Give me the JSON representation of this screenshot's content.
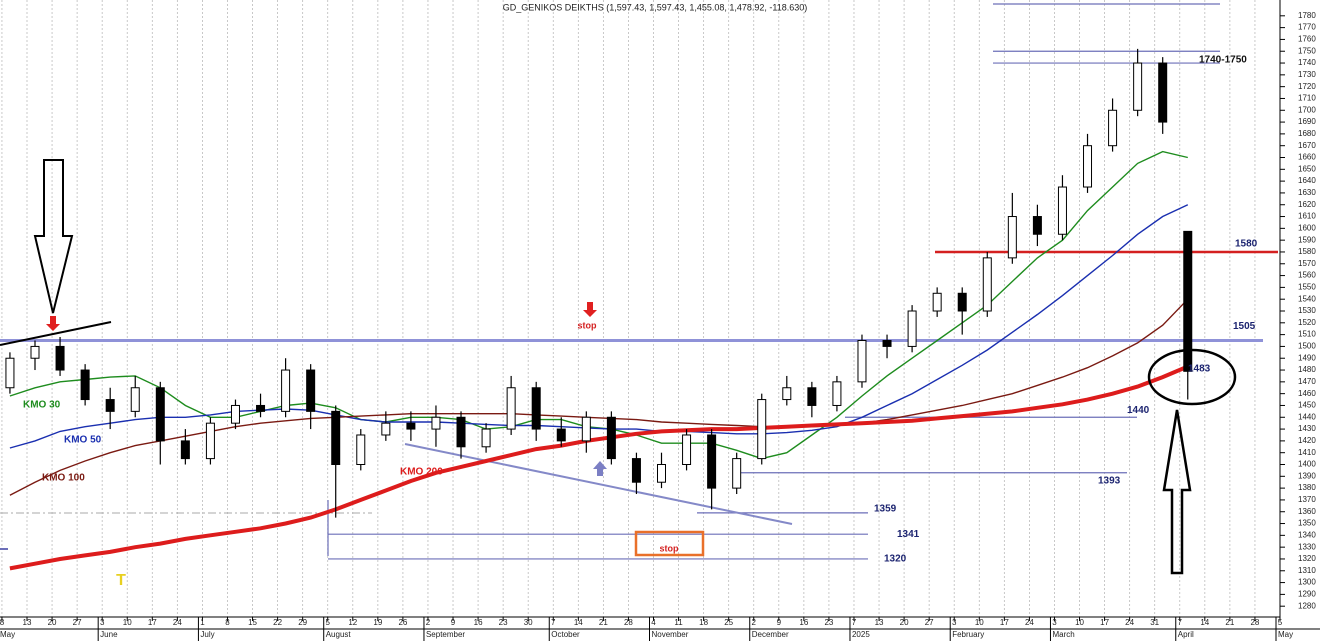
{
  "chart_data": {
    "type": "candlestick",
    "title": "GD_GENIKOS DEIKTHS (1,597.43, 1,597.43, 1,455.08, 1,478.92, -118.630)",
    "categories": [
      "8",
      "13",
      "20",
      "27",
      "3",
      "10",
      "17",
      "24",
      "1",
      "8",
      "15",
      "22",
      "29",
      "5",
      "12",
      "19",
      "26",
      "2",
      "9",
      "16",
      "23",
      "30",
      "7",
      "14",
      "21",
      "28",
      "4",
      "11",
      "18",
      "25",
      "2",
      "9",
      "16",
      "23",
      "7",
      "13",
      "20",
      "27",
      "3",
      "10",
      "17",
      "24",
      "3",
      "10",
      "17",
      "24",
      "31",
      "7",
      "14",
      "21",
      "28",
      "5"
    ],
    "months": [
      "May",
      null,
      null,
      null,
      "June",
      null,
      null,
      null,
      "July",
      null,
      null,
      null,
      null,
      "August",
      null,
      null,
      null,
      "September",
      null,
      null,
      null,
      null,
      "October",
      null,
      null,
      null,
      "November",
      null,
      null,
      null,
      "December",
      null,
      null,
      null,
      "2025",
      null,
      null,
      null,
      "February",
      null,
      null,
      null,
      "March",
      null,
      null,
      null,
      null,
      "April",
      null,
      null,
      null,
      "May"
    ],
    "open": [
      1465,
      1490,
      1500,
      1480,
      1455,
      1445,
      1465,
      1420,
      1405,
      1435,
      1450,
      1445,
      1480,
      1445,
      1400,
      1425,
      1435,
      1430,
      1440,
      1415,
      1430,
      1465,
      1430,
      1420,
      1440,
      1405,
      1385,
      1400,
      1425,
      1380,
      1405,
      1455,
      1465,
      1450,
      1470,
      1505,
      1500,
      1530,
      1545,
      1530,
      1575,
      1610,
      1595,
      1635,
      1670,
      1700,
      1740,
      1597.43,
      null,
      null,
      null,
      null
    ],
    "high": [
      1495,
      1505,
      1508,
      1485,
      1465,
      1475,
      1470,
      1430,
      1440,
      1455,
      1460,
      1490,
      1485,
      1450,
      1430,
      1445,
      1445,
      1450,
      1445,
      1435,
      1475,
      1470,
      1440,
      1445,
      1445,
      1410,
      1410,
      1430,
      1430,
      1410,
      1460,
      1475,
      1470,
      1475,
      1510,
      1510,
      1535,
      1550,
      1550,
      1580,
      1630,
      1620,
      1645,
      1680,
      1710,
      1752,
      1745,
      1597.43,
      null,
      null,
      null,
      null
    ],
    "low": [
      1460,
      1480,
      1475,
      1450,
      1430,
      1440,
      1400,
      1400,
      1400,
      1430,
      1440,
      1440,
      1430,
      1355,
      1395,
      1420,
      1420,
      1415,
      1405,
      1410,
      1425,
      1420,
      1415,
      1410,
      1400,
      1375,
      1380,
      1395,
      1362,
      1375,
      1400,
      1450,
      1440,
      1445,
      1465,
      1490,
      1495,
      1525,
      1510,
      1525,
      1570,
      1585,
      1590,
      1630,
      1665,
      1695,
      1680,
      1455.08,
      null,
      null,
      null,
      null
    ],
    "close": [
      1490,
      1500,
      1480,
      1455,
      1445,
      1465,
      1420,
      1405,
      1435,
      1450,
      1445,
      1480,
      1445,
      1400,
      1425,
      1435,
      1430,
      1440,
      1415,
      1430,
      1465,
      1430,
      1420,
      1440,
      1405,
      1385,
      1400,
      1425,
      1380,
      1405,
      1455,
      1465,
      1450,
      1470,
      1505,
      1500,
      1530,
      1545,
      1530,
      1575,
      1610,
      1595,
      1635,
      1670,
      1700,
      1740,
      1690,
      1478.92,
      null,
      null,
      null,
      null
    ],
    "series": [
      {
        "name": "KMO 30",
        "color": "#1e8c1e",
        "values": [
          1458,
          1465,
          1470,
          1472,
          1474,
          1475,
          1465,
          1450,
          1440,
          1440,
          1445,
          1450,
          1452,
          1448,
          1438,
          1436,
          1440,
          1440,
          1438,
          1430,
          1432,
          1438,
          1438,
          1432,
          1430,
          1425,
          1418,
          1418,
          1418,
          1412,
          1405,
          1410,
          1425,
          1440,
          1458,
          1475,
          1490,
          1505,
          1520,
          1535,
          1555,
          1575,
          1590,
          1615,
          1635,
          1655,
          1665,
          1660,
          null,
          null,
          null,
          null
        ]
      },
      {
        "name": "KMO 50",
        "color": "#1a2fb0",
        "values": [
          1414,
          1420,
          1428,
          1432,
          1435,
          1438,
          1440,
          1440,
          1442,
          1445,
          1446,
          1447,
          1446,
          1442,
          1438,
          1436,
          1436,
          1436,
          1435,
          1434,
          1433,
          1433,
          1432,
          1431,
          1430,
          1430,
          1428,
          1428,
          1427,
          1426,
          1426,
          1427,
          1429,
          1432,
          1440,
          1450,
          1460,
          1472,
          1484,
          1497,
          1512,
          1527,
          1543,
          1560,
          1577,
          1595,
          1610,
          1620,
          null,
          null,
          null,
          null
        ]
      },
      {
        "name": "KMO 100",
        "color": "#7a1a12",
        "values": [
          1374,
          1385,
          1395,
          1403,
          1410,
          1416,
          1420,
          1424,
          1428,
          1432,
          1435,
          1437,
          1439,
          1440,
          1441,
          1442,
          1443,
          1443,
          1443,
          1443,
          1443,
          1442,
          1441,
          1440,
          1439,
          1438,
          1436,
          1435,
          1434,
          1433,
          1432,
          1432,
          1432,
          1433,
          1435,
          1438,
          1442,
          1446,
          1450,
          1455,
          1460,
          1467,
          1474,
          1482,
          1492,
          1503,
          1518,
          1540,
          null,
          null,
          null,
          null
        ]
      },
      {
        "name": "KMO 200",
        "color": "#dd1c1c",
        "values": [
          1312,
          1316,
          1320,
          1323,
          1326,
          1330,
          1333,
          1337,
          1340,
          1343,
          1346,
          1350,
          1355,
          1362,
          1370,
          1378,
          1386,
          1393,
          1398,
          1403,
          1408,
          1413,
          1416,
          1420,
          1423,
          1426,
          1428,
          1429,
          1430,
          1430,
          1431,
          1432,
          1433,
          1434,
          1435,
          1436,
          1437,
          1439,
          1441,
          1443,
          1445,
          1448,
          1451,
          1455,
          1460,
          1466,
          1474,
          1483,
          null,
          null,
          null,
          null
        ]
      }
    ],
    "levels": [
      1790,
      1750,
      1740,
      1580,
      1505,
      1440,
      1393,
      1359,
      1341,
      1320
    ],
    "annotations": [
      "stop",
      "stop",
      "1740-1750",
      "T"
    ],
    "ylim": [
      1270,
      1790
    ],
    "yticks": [
      1280,
      1290,
      1300,
      1310,
      1320,
      1330,
      1340,
      1350,
      1360,
      1370,
      1380,
      1390,
      1400,
      1410,
      1420,
      1430,
      1440,
      1450,
      1460,
      1470,
      1480,
      1490,
      1500,
      1510,
      1520,
      1530,
      1540,
      1550,
      1560,
      1570,
      1580,
      1590,
      1600,
      1610,
      1620,
      1630,
      1640,
      1650,
      1660,
      1670,
      1680,
      1690,
      1700,
      1710,
      1720,
      1730,
      1740,
      1750,
      1760,
      1770,
      1780
    ],
    "grid": true
  }
}
